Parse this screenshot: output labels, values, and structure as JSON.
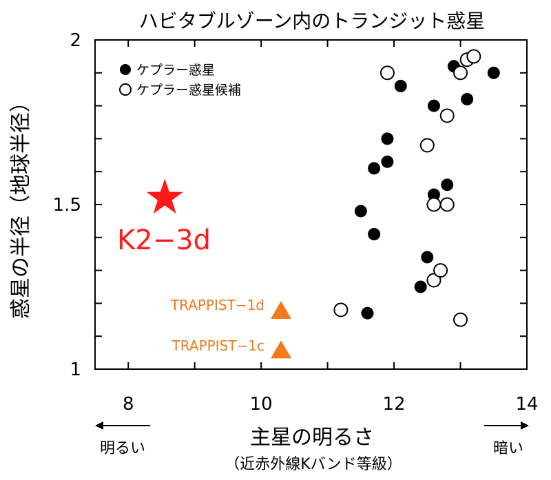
{
  "chart_data": {
    "type": "scatter",
    "title": "ハビタブルゾーン内のトランジット惑星",
    "xlabel": "主星の明るさ",
    "xlabel_sub": "（近赤外線Kバンド等級）",
    "ylabel": "惑星の半径（地球半径）",
    "xlim": [
      7.5,
      14
    ],
    "ylim": [
      1,
      2
    ],
    "x_ticks": [
      8,
      10,
      12,
      14
    ],
    "x_tick_labels": [
      "8",
      "10",
      "12",
      "14"
    ],
    "y_ticks": [
      1,
      1.5,
      2
    ],
    "y_tick_labels": [
      "1",
      "1.5",
      "2"
    ],
    "x_minor_ticks": [
      9,
      11,
      13
    ],
    "y_minor_ticks": [
      1.1,
      1.2,
      1.3,
      1.4,
      1.6,
      1.7,
      1.8,
      1.9
    ],
    "grid": false,
    "legend_position": "top-left",
    "arrow_left_label": "明るい",
    "arrow_right_label": "暗い",
    "colors": {
      "red": "#ff1a1a",
      "orange": "#f07a1c",
      "black": "#000000"
    },
    "series": [
      {
        "name": "ケプラー惑星",
        "marker": "filled-circle",
        "points": [
          {
            "x": 11.5,
            "y": 1.48
          },
          {
            "x": 11.6,
            "y": 1.17
          },
          {
            "x": 11.7,
            "y": 1.41
          },
          {
            "x": 11.7,
            "y": 1.61
          },
          {
            "x": 11.9,
            "y": 1.63
          },
          {
            "x": 11.9,
            "y": 1.7
          },
          {
            "x": 12.1,
            "y": 1.86
          },
          {
            "x": 12.4,
            "y": 1.25
          },
          {
            "x": 12.5,
            "y": 1.34
          },
          {
            "x": 12.6,
            "y": 1.53
          },
          {
            "x": 12.6,
            "y": 1.8
          },
          {
            "x": 12.8,
            "y": 1.56
          },
          {
            "x": 12.9,
            "y": 1.92
          },
          {
            "x": 13.1,
            "y": 1.82
          },
          {
            "x": 13.5,
            "y": 1.9
          }
        ]
      },
      {
        "name": "ケプラー惑星候補",
        "marker": "open-circle",
        "points": [
          {
            "x": 11.2,
            "y": 1.18
          },
          {
            "x": 11.9,
            "y": 1.9
          },
          {
            "x": 12.5,
            "y": 1.68
          },
          {
            "x": 12.6,
            "y": 1.27
          },
          {
            "x": 12.6,
            "y": 1.5
          },
          {
            "x": 12.7,
            "y": 1.3
          },
          {
            "x": 12.8,
            "y": 1.5
          },
          {
            "x": 12.8,
            "y": 1.77
          },
          {
            "x": 13.0,
            "y": 1.15
          },
          {
            "x": 13.0,
            "y": 1.9
          },
          {
            "x": 13.1,
            "y": 1.94
          },
          {
            "x": 13.2,
            "y": 1.95
          }
        ]
      },
      {
        "name": "K2-3d",
        "marker": "red-star",
        "points": [
          {
            "x": 8.55,
            "y": 1.52
          }
        ],
        "label": "K2−3d"
      },
      {
        "name": "TRAPPIST",
        "marker": "orange-triangle",
        "points": [
          {
            "x": 10.3,
            "y": 1.18,
            "label": "TRAPPIST−1d"
          },
          {
            "x": 10.3,
            "y": 1.06,
            "label": "TRAPPIST−1c"
          }
        ]
      }
    ]
  }
}
